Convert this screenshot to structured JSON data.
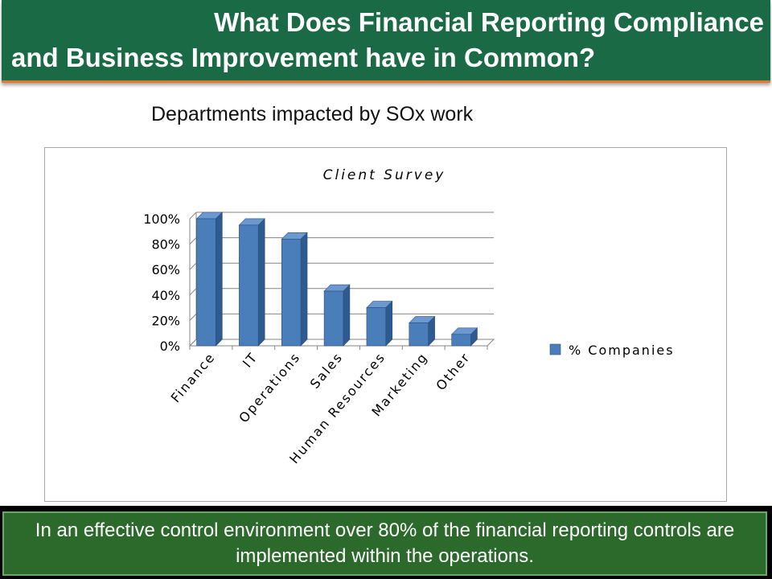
{
  "header": {
    "title_line1": "What Does Financial Reporting Compliance",
    "title_line2": "and Business Improvement have in Common?"
  },
  "subtitle": "Departments impacted by SOx work",
  "footer": {
    "text": "In an effective control environment over 80% of the financial reporting controls are implemented within the operations."
  },
  "colors": {
    "header_bg": "#1a6a45",
    "header_accent": "#e07a2a",
    "footer_bg": "#2c6a2c",
    "bar": "#4a7ebb"
  },
  "chart_data": {
    "type": "bar",
    "title": "Client Survey",
    "categories": [
      "Finance",
      "IT",
      "Operations",
      "Sales",
      "Human Resources",
      "Marketing",
      "Other"
    ],
    "series": [
      {
        "name": "% Companies",
        "values": [
          100,
          95,
          84,
          43,
          30,
          18,
          9
        ]
      }
    ],
    "yticks": [
      "0%",
      "20%",
      "40%",
      "60%",
      "80%",
      "100%"
    ],
    "ylim": [
      0,
      100
    ],
    "grid": true,
    "legend": "right",
    "style": "3d-column"
  }
}
